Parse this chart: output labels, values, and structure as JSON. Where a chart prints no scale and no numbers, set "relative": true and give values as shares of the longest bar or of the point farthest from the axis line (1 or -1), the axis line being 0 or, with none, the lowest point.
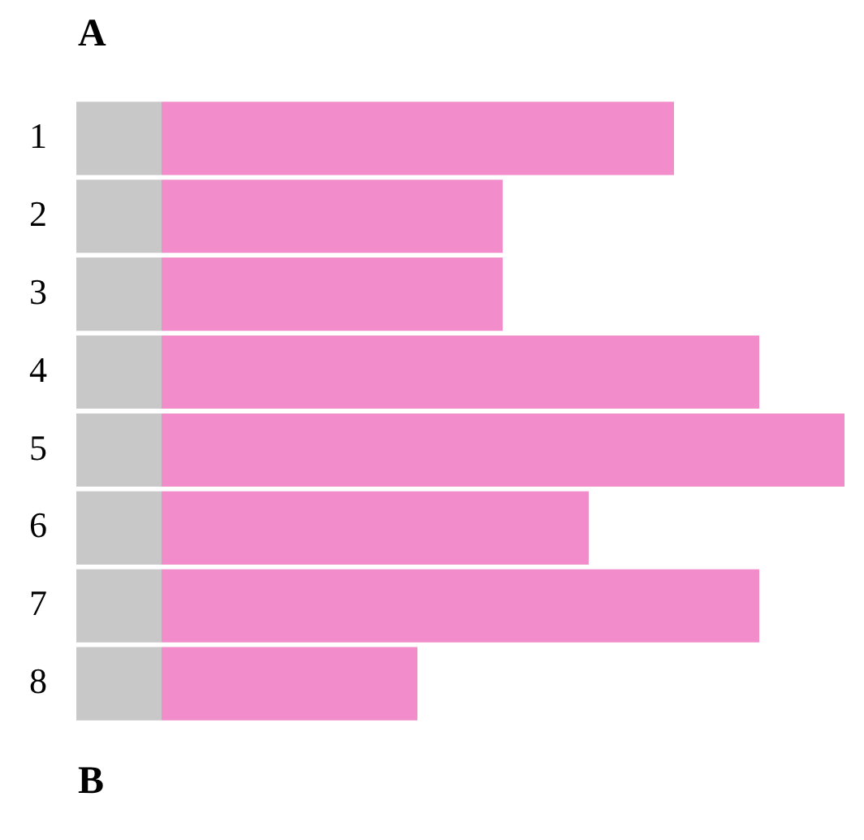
{
  "chart_data": {
    "type": "bar",
    "orientation": "horizontal",
    "stacked": true,
    "relative": true,
    "annotations": [
      "A",
      "B"
    ],
    "categories": [
      "1",
      "2",
      "3",
      "4",
      "5",
      "6",
      "7",
      "8"
    ],
    "series": [
      {
        "color": "#c8c8c8",
        "values": [
          0.111,
          0.111,
          0.111,
          0.111,
          0.111,
          0.111,
          0.111,
          0.111
        ]
      },
      {
        "color": "#f28ccb",
        "values": [
          0.667,
          0.444,
          0.444,
          0.778,
          0.889,
          0.556,
          0.778,
          0.333
        ]
      }
    ],
    "grid": false,
    "legend": false
  }
}
